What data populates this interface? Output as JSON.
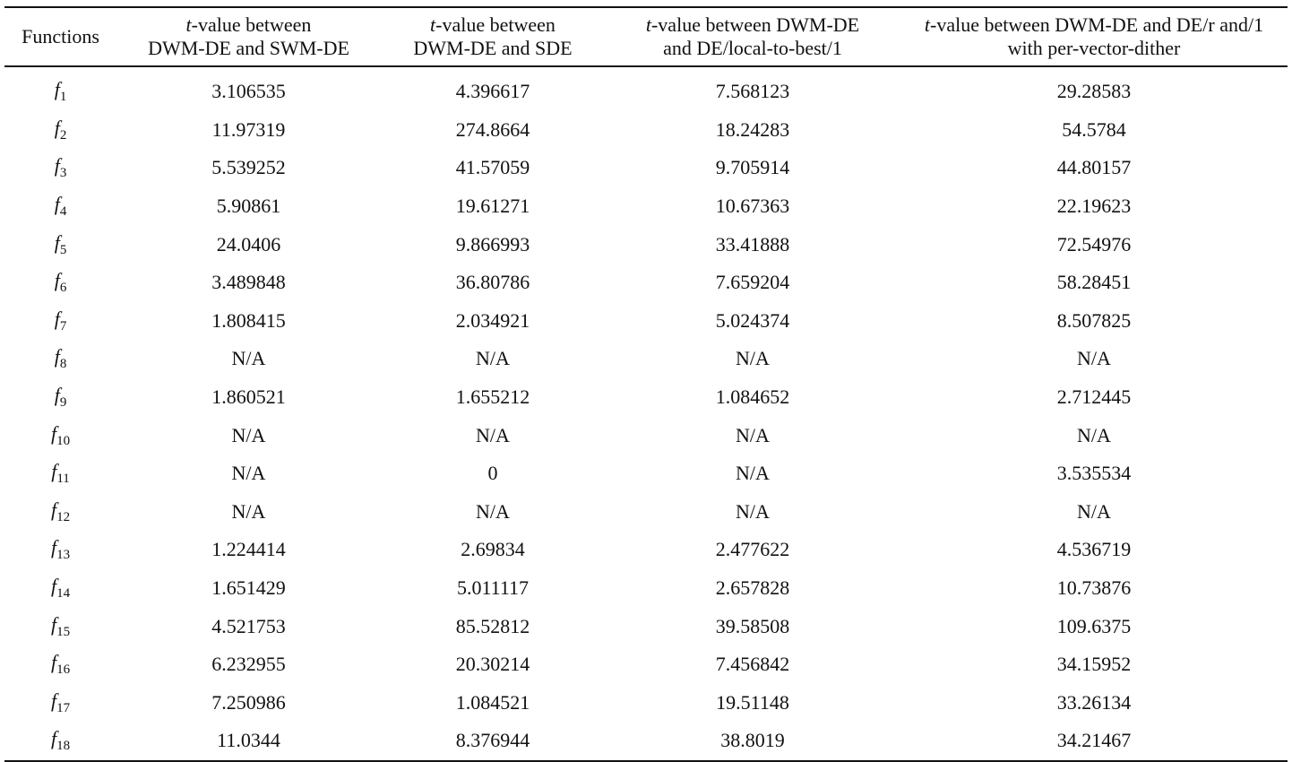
{
  "table": {
    "columns": [
      {
        "lines": [
          {
            "t_prefix": "",
            "rest": "Functions"
          }
        ]
      },
      {
        "lines": [
          {
            "t_prefix": "t",
            "rest": "-value between"
          },
          {
            "t_prefix": "",
            "rest": "DWM-DE and SWM-DE"
          }
        ]
      },
      {
        "lines": [
          {
            "t_prefix": "t",
            "rest": "-value between"
          },
          {
            "t_prefix": "",
            "rest": "DWM-DE and SDE"
          }
        ]
      },
      {
        "lines": [
          {
            "t_prefix": "t",
            "rest": "-value between DWM-DE"
          },
          {
            "t_prefix": "",
            "rest": "and DE/local-to-best/1"
          }
        ]
      },
      {
        "lines": [
          {
            "t_prefix": "t",
            "rest": "-value between DWM-DE and DE/r and/1"
          },
          {
            "t_prefix": "",
            "rest": "with per-vector-dither"
          }
        ]
      }
    ],
    "rows": [
      {
        "func": "f",
        "sub": "1",
        "values": [
          "3.106535",
          "4.396617",
          "7.568123",
          "29.28583"
        ]
      },
      {
        "func": "f",
        "sub": "2",
        "values": [
          "11.97319",
          "274.8664",
          "18.24283",
          "54.5784"
        ]
      },
      {
        "func": "f",
        "sub": "3",
        "values": [
          "5.539252",
          "41.57059",
          "9.705914",
          "44.80157"
        ]
      },
      {
        "func": "f",
        "sub": "4",
        "values": [
          "5.90861",
          "19.61271",
          "10.67363",
          "22.19623"
        ]
      },
      {
        "func": "f",
        "sub": "5",
        "values": [
          "24.0406",
          "9.866993",
          "33.41888",
          "72.54976"
        ]
      },
      {
        "func": "f",
        "sub": "6",
        "values": [
          "3.489848",
          "36.80786",
          "7.659204",
          "58.28451"
        ]
      },
      {
        "func": "f",
        "sub": "7",
        "values": [
          "1.808415",
          "2.034921",
          "5.024374",
          "8.507825"
        ]
      },
      {
        "func": "f",
        "sub": "8",
        "values": [
          "N/A",
          "N/A",
          "N/A",
          "N/A"
        ]
      },
      {
        "func": "f",
        "sub": "9",
        "values": [
          "1.860521",
          "1.655212",
          "1.084652",
          "2.712445"
        ]
      },
      {
        "func": "f",
        "sub": "10",
        "values": [
          "N/A",
          "N/A",
          "N/A",
          "N/A"
        ]
      },
      {
        "func": "f",
        "sub": "11",
        "values": [
          "N/A",
          "0",
          "N/A",
          "3.535534"
        ]
      },
      {
        "func": "f",
        "sub": "12",
        "values": [
          "N/A",
          "N/A",
          "N/A",
          "N/A"
        ]
      },
      {
        "func": "f",
        "sub": "13",
        "values": [
          "1.224414",
          "2.69834",
          "2.477622",
          "4.536719"
        ]
      },
      {
        "func": "f",
        "sub": "14",
        "values": [
          "1.651429",
          "5.011117",
          "2.657828",
          "10.73876"
        ]
      },
      {
        "func": "f",
        "sub": "15",
        "values": [
          "4.521753",
          "85.52812",
          "39.58508",
          "109.6375"
        ]
      },
      {
        "func": "f",
        "sub": "16",
        "values": [
          "6.232955",
          "20.30214",
          "7.456842",
          "34.15952"
        ]
      },
      {
        "func": "f",
        "sub": "17",
        "values": [
          "7.250986",
          "1.084521",
          "19.51148",
          "33.26134"
        ]
      },
      {
        "func": "f",
        "sub": "18",
        "values": [
          "11.0344",
          "8.376944",
          "38.8019",
          "34.21467"
        ]
      }
    ]
  }
}
